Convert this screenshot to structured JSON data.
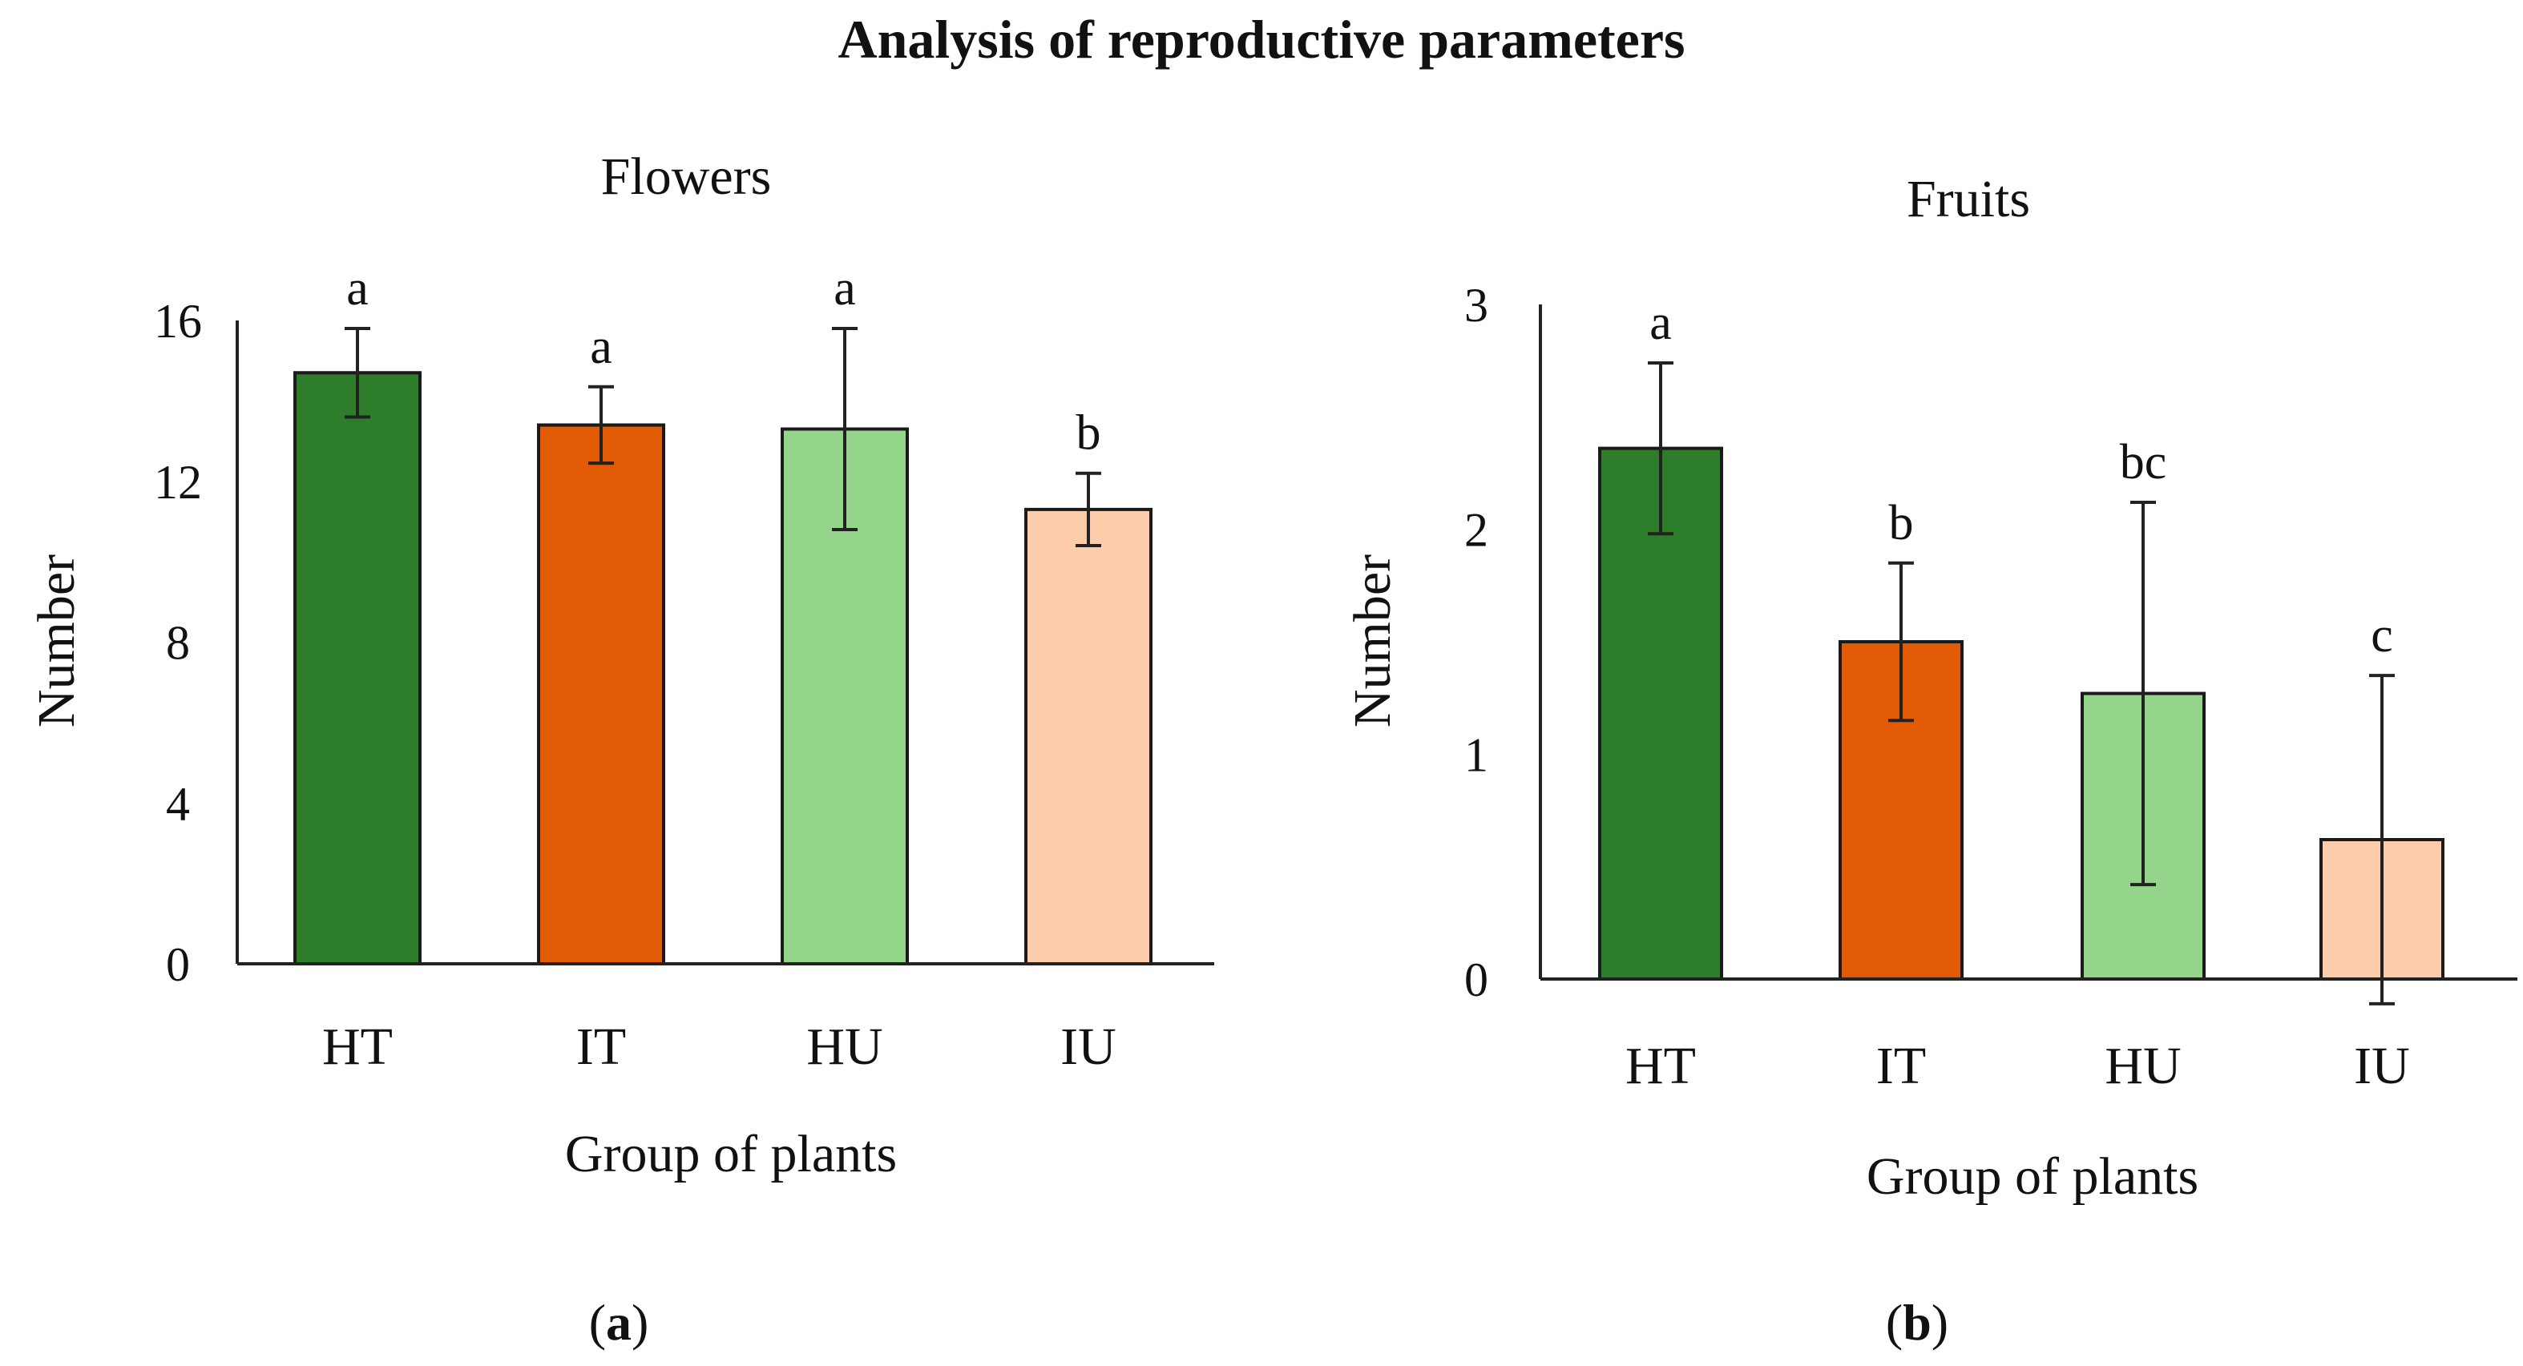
{
  "figure_title": "Analysis of reproductive parameters",
  "colors": {
    "HT": "#2e7d2a",
    "IT": "#e25a04",
    "HU": "#95d48b",
    "IU": "#fdccab"
  },
  "chart_data": [
    {
      "type": "bar",
      "title": "Flowers",
      "xlabel": "Group of plants",
      "ylabel": "Number",
      "categories": [
        "HT",
        "IT",
        "HU",
        "IU"
      ],
      "values": [
        14.7,
        13.4,
        13.3,
        11.3
      ],
      "errors": [
        1.1,
        0.95,
        2.5,
        0.9
      ],
      "letters": [
        "a",
        "a",
        "a",
        "b"
      ],
      "ylim": [
        0,
        16
      ],
      "yticks": [
        "0",
        "4",
        "8",
        "12",
        "16"
      ],
      "sublabel_open": "(",
      "sublabel_letter": "a",
      "sublabel_close": ")"
    },
    {
      "type": "bar",
      "title": "Fruits",
      "xlabel": "Group of plants",
      "ylabel": "Number",
      "categories": [
        "HT",
        "IT",
        "HU",
        "IU"
      ],
      "values": [
        2.36,
        1.5,
        1.27,
        0.62
      ],
      "errors": [
        0.38,
        0.35,
        0.85,
        0.73
      ],
      "letters": [
        "a",
        "b",
        "bc",
        "c"
      ],
      "ylim": [
        0,
        3
      ],
      "yticks": [
        "0",
        "1",
        "2",
        "3"
      ],
      "sublabel_open": "(",
      "sublabel_letter": "b",
      "sublabel_close": ")"
    }
  ]
}
